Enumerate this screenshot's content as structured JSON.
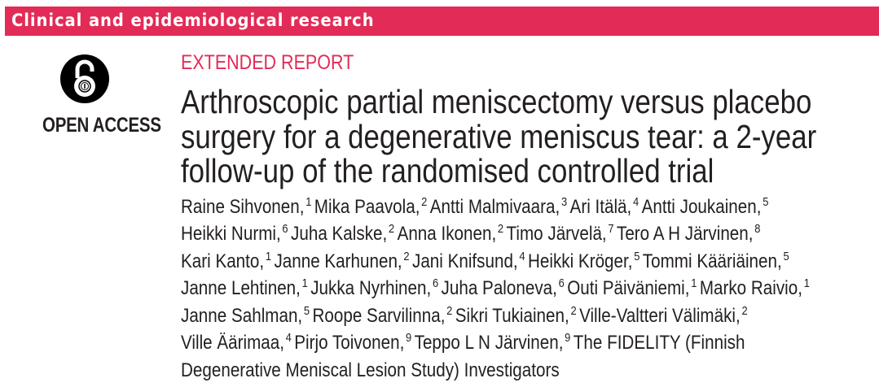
{
  "section_banner": "Clinical and epidemiological research",
  "open_access": {
    "icon": "open-padlock-icon",
    "label": "OPEN ACCESS"
  },
  "article_type": "EXTENDED REPORT",
  "title_lines": [
    "Arthroscopic partial meniscectomy versus placebo",
    "surgery for a degenerative meniscus tear: a 2-year",
    "follow-up of the randomised controlled trial"
  ],
  "author_lines": [
    [
      {
        "name": "Raine Sihvonen,",
        "aff": "1"
      },
      {
        "name": "Mika Paavola,",
        "aff": "2"
      },
      {
        "name": "Antti Malmivaara,",
        "aff": "3"
      },
      {
        "name": "Ari Itälä,",
        "aff": "4"
      },
      {
        "name": "Antti Joukainen,",
        "aff": "5"
      }
    ],
    [
      {
        "name": "Heikki Nurmi,",
        "aff": "6"
      },
      {
        "name": "Juha Kalske,",
        "aff": "2"
      },
      {
        "name": "Anna Ikonen,",
        "aff": "2"
      },
      {
        "name": "Timo Järvelä,",
        "aff": "7"
      },
      {
        "name": "Tero A H Järvinen,",
        "aff": "8"
      }
    ],
    [
      {
        "name": "Kari Kanto,",
        "aff": "1"
      },
      {
        "name": "Janne Karhunen,",
        "aff": "2"
      },
      {
        "name": "Jani Knifsund,",
        "aff": "4"
      },
      {
        "name": "Heikki Kröger,",
        "aff": "5"
      },
      {
        "name": "Tommi Kääriäinen,",
        "aff": "5"
      }
    ],
    [
      {
        "name": "Janne Lehtinen,",
        "aff": "1"
      },
      {
        "name": "Jukka Nyrhinen,",
        "aff": "6"
      },
      {
        "name": "Juha Paloneva,",
        "aff": "6"
      },
      {
        "name": "Outi Päiväniemi,",
        "aff": "1"
      },
      {
        "name": "Marko Raivio,",
        "aff": "1"
      }
    ],
    [
      {
        "name": "Janne Sahlman,",
        "aff": "5"
      },
      {
        "name": "Roope Sarvilinna,",
        "aff": "2"
      },
      {
        "name": "Sikri Tukiainen,",
        "aff": "2"
      },
      {
        "name": "Ville-Valtteri Välimäki,",
        "aff": "2"
      }
    ],
    [
      {
        "name": "Ville Äärimaa,",
        "aff": "4"
      },
      {
        "name": "Pirjo Toivonen,",
        "aff": "9"
      },
      {
        "name": "Teppo L N Järvinen,",
        "aff": "9"
      },
      {
        "name": "The FIDELITY (Finnish",
        "aff": null
      }
    ],
    [
      {
        "name": "Degenerative Meniscal Lesion Study) Investigators",
        "aff": null
      }
    ]
  ],
  "colors": {
    "accent": "#e22b57",
    "text": "#231f20"
  }
}
